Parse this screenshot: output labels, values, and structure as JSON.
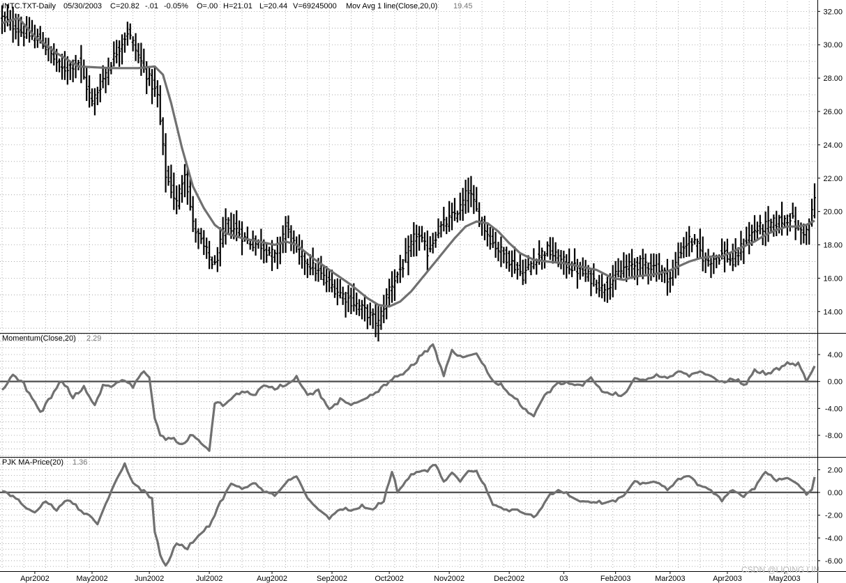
{
  "watermark": "CSDN @LIQING LIN",
  "chart_data": [
    {
      "type": "bar",
      "panel": "price",
      "header": {
        "symbol": "INTC.TXT-Daily",
        "date": "05/30/2003",
        "close": "C=20.82",
        "change": "-.01",
        "change_pct": "-0.05%",
        "open": "O=.00",
        "high": "H=21.01",
        "low": "L=20.44",
        "volume": "V=69245000",
        "indicator": "Mov Avg 1 line(Close,20,0)",
        "indicator_value": "19.45"
      },
      "ylim": [
        12.8,
        32.6
      ],
      "y_ticks": [
        "32.00",
        "30.00",
        "28.00",
        "26.00",
        "24.00",
        "22.00",
        "20.00",
        "18.00",
        "16.00",
        "14.00"
      ],
      "x_ticks": [
        "Apr2002",
        "May2002",
        "Jun2002",
        "Jul2002",
        "Aug2002",
        "Sep2002",
        "Oct2002",
        "Nov2002",
        "Dec2002",
        "03",
        "Feb2003",
        "Mar2003",
        "Apr2003",
        "May2003"
      ],
      "close_anchors": [
        [
          0,
          31.6
        ],
        [
          8,
          30.7
        ],
        [
          14,
          30.3
        ],
        [
          22,
          28.5
        ],
        [
          28,
          29.0
        ],
        [
          33,
          26.5
        ],
        [
          39,
          28.7
        ],
        [
          46,
          30.8
        ],
        [
          52,
          28.6
        ],
        [
          57,
          26.9
        ],
        [
          60,
          22.2
        ],
        [
          64,
          20.5
        ],
        [
          67,
          22.5
        ],
        [
          70,
          19.2
        ],
        [
          74,
          17.8
        ],
        [
          78,
          16.7
        ],
        [
          82,
          19.3
        ],
        [
          86,
          18.9
        ],
        [
          90,
          18.2
        ],
        [
          95,
          18.0
        ],
        [
          100,
          17.3
        ],
        [
          104,
          19.1
        ],
        [
          108,
          17.7
        ],
        [
          113,
          16.8
        ],
        [
          118,
          16.0
        ],
        [
          124,
          15.1
        ],
        [
          131,
          14.3
        ],
        [
          138,
          13.3
        ],
        [
          142,
          15.4
        ],
        [
          147,
          16.8
        ],
        [
          152,
          18.7
        ],
        [
          156,
          17.6
        ],
        [
          160,
          18.9
        ],
        [
          164,
          19.5
        ],
        [
          168,
          20.2
        ],
        [
          171,
          21.3
        ],
        [
          175,
          19.6
        ],
        [
          180,
          18.1
        ],
        [
          186,
          17.1
        ],
        [
          191,
          16.2
        ],
        [
          196,
          17.3
        ],
        [
          200,
          17.7
        ],
        [
          204,
          17.1
        ],
        [
          210,
          16.6
        ],
        [
          216,
          16.0
        ],
        [
          220,
          15.4
        ],
        [
          224,
          15.9
        ],
        [
          228,
          16.6
        ],
        [
          232,
          16.8
        ],
        [
          236,
          16.9
        ],
        [
          240,
          16.6
        ],
        [
          245,
          16.0
        ],
        [
          249,
          17.7
        ],
        [
          252,
          18.3
        ],
        [
          255,
          17.9
        ],
        [
          258,
          17.0
        ],
        [
          262,
          17.3
        ],
        [
          265,
          17.5
        ],
        [
          268,
          16.9
        ],
        [
          272,
          18.1
        ],
        [
          276,
          18.9
        ],
        [
          280,
          19.1
        ],
        [
          285,
          19.4
        ],
        [
          289,
          19.7
        ],
        [
          292,
          18.9
        ],
        [
          295,
          18.8
        ],
        [
          297,
          19.9
        ],
        [
          298,
          20.82
        ]
      ],
      "ma_anchors": [
        [
          0,
          31.3
        ],
        [
          6,
          31.6
        ],
        [
          12,
          30.5
        ],
        [
          20,
          29.5
        ],
        [
          28,
          28.7
        ],
        [
          40,
          28.6
        ],
        [
          50,
          28.6
        ],
        [
          56,
          28.7
        ],
        [
          59,
          28.2
        ],
        [
          62,
          26.5
        ],
        [
          66,
          23.8
        ],
        [
          70,
          21.5
        ],
        [
          74,
          20.2
        ],
        [
          78,
          19.2
        ],
        [
          82,
          18.7
        ],
        [
          88,
          18.4
        ],
        [
          94,
          18.2
        ],
        [
          100,
          18.0
        ],
        [
          104,
          18.2
        ],
        [
          108,
          18.0
        ],
        [
          114,
          17.2
        ],
        [
          120,
          16.5
        ],
        [
          128,
          15.6
        ],
        [
          134,
          14.8
        ],
        [
          138,
          14.4
        ],
        [
          142,
          14.3
        ],
        [
          146,
          14.6
        ],
        [
          150,
          15.2
        ],
        [
          154,
          16.0
        ],
        [
          160,
          17.2
        ],
        [
          166,
          18.4
        ],
        [
          170,
          19.1
        ],
        [
          174,
          19.4
        ],
        [
          178,
          19.3
        ],
        [
          182,
          18.8
        ],
        [
          186,
          18.1
        ],
        [
          190,
          17.5
        ],
        [
          195,
          17.1
        ],
        [
          200,
          17.0
        ],
        [
          206,
          16.9
        ],
        [
          212,
          16.7
        ],
        [
          218,
          16.5
        ],
        [
          224,
          16.0
        ],
        [
          228,
          15.9
        ],
        [
          232,
          16.1
        ],
        [
          238,
          16.2
        ],
        [
          244,
          16.4
        ],
        [
          248,
          16.7
        ],
        [
          252,
          17.0
        ],
        [
          256,
          17.2
        ],
        [
          260,
          17.3
        ],
        [
          264,
          17.3
        ],
        [
          268,
          17.6
        ],
        [
          272,
          17.9
        ],
        [
          276,
          18.2
        ],
        [
          280,
          18.6
        ],
        [
          284,
          18.9
        ],
        [
          288,
          19.1
        ],
        [
          292,
          19.1
        ],
        [
          295,
          19.2
        ],
        [
          298,
          19.45
        ]
      ]
    },
    {
      "type": "line",
      "panel": "momentum",
      "title": "Momentum(Close,20)",
      "value_label": "2.29",
      "ylim": [
        -11.0,
        7.0
      ],
      "y_ticks": [
        "4.00",
        "0.00",
        "-4.00",
        "-8.00"
      ],
      "zero_line": 0,
      "anchors": [
        [
          0,
          -1.5
        ],
        [
          4,
          1.0
        ],
        [
          8,
          -0.2
        ],
        [
          11,
          -2.5
        ],
        [
          14,
          -4.5
        ],
        [
          18,
          -2.0
        ],
        [
          22,
          0.0
        ],
        [
          26,
          -2.5
        ],
        [
          30,
          -1.0
        ],
        [
          34,
          -3.5
        ],
        [
          37,
          -0.5
        ],
        [
          40,
          -0.8
        ],
        [
          44,
          0.2
        ],
        [
          48,
          -0.5
        ],
        [
          52,
          1.5
        ],
        [
          54,
          0.5
        ],
        [
          56,
          -5.5
        ],
        [
          58,
          -8.0
        ],
        [
          62,
          -8.5
        ],
        [
          66,
          -9.5
        ],
        [
          70,
          -8.0
        ],
        [
          73,
          -9.2
        ],
        [
          76,
          -10.3
        ],
        [
          78,
          -3.0
        ],
        [
          82,
          -3.3
        ],
        [
          86,
          -1.8
        ],
        [
          88,
          -1.5
        ],
        [
          92,
          -2.0
        ],
        [
          96,
          -0.5
        ],
        [
          100,
          -1.2
        ],
        [
          104,
          -0.6
        ],
        [
          108,
          0.5
        ],
        [
          112,
          -2.0
        ],
        [
          116,
          -1.2
        ],
        [
          120,
          -4.3
        ],
        [
          124,
          -2.5
        ],
        [
          128,
          -3.5
        ],
        [
          132,
          -2.8
        ],
        [
          136,
          -2.0
        ],
        [
          140,
          -0.5
        ],
        [
          144,
          0.5
        ],
        [
          148,
          1.5
        ],
        [
          152,
          2.8
        ],
        [
          155,
          4.5
        ],
        [
          158,
          5.5
        ],
        [
          160,
          3.0
        ],
        [
          162,
          1.2
        ],
        [
          165,
          4.5
        ],
        [
          168,
          3.5
        ],
        [
          171,
          3.8
        ],
        [
          174,
          4.2
        ],
        [
          177,
          2.0
        ],
        [
          180,
          0.0
        ],
        [
          184,
          -1.0
        ],
        [
          188,
          -2.5
        ],
        [
          192,
          -4.5
        ],
        [
          195,
          -5.0
        ],
        [
          199,
          -2.0
        ],
        [
          203,
          -0.5
        ],
        [
          207,
          -0.3
        ],
        [
          212,
          -0.5
        ],
        [
          216,
          0.5
        ],
        [
          220,
          -1.5
        ],
        [
          224,
          -2.0
        ],
        [
          228,
          -2.2
        ],
        [
          232,
          0.5
        ],
        [
          236,
          0.2
        ],
        [
          240,
          0.8
        ],
        [
          244,
          0.5
        ],
        [
          248,
          1.5
        ],
        [
          252,
          1.0
        ],
        [
          256,
          1.5
        ],
        [
          260,
          0.8
        ],
        [
          264,
          -0.3
        ],
        [
          268,
          0.3
        ],
        [
          272,
          -0.5
        ],
        [
          276,
          1.5
        ],
        [
          280,
          1.0
        ],
        [
          284,
          2.0
        ],
        [
          288,
          2.5
        ],
        [
          292,
          2.8
        ],
        [
          295,
          0.0
        ],
        [
          297,
          1.5
        ],
        [
          298,
          2.29
        ]
      ]
    },
    {
      "type": "line",
      "panel": "pjk",
      "title": "PJK MA-Price(20)",
      "value_label": "1.36",
      "ylim": [
        -6.8,
        3.0
      ],
      "y_ticks": [
        "2.00",
        "0.00",
        "-2.00",
        "-4.00",
        "-6.00"
      ],
      "zero_line": 0,
      "anchors": [
        [
          0,
          0.2
        ],
        [
          4,
          -0.3
        ],
        [
          8,
          -1.2
        ],
        [
          12,
          -1.8
        ],
        [
          16,
          -0.8
        ],
        [
          20,
          -1.6
        ],
        [
          24,
          -0.5
        ],
        [
          28,
          -1.5
        ],
        [
          32,
          -2.0
        ],
        [
          35,
          -2.8
        ],
        [
          38,
          -1.0
        ],
        [
          42,
          1.2
        ],
        [
          45,
          2.4
        ],
        [
          48,
          0.8
        ],
        [
          52,
          0.2
        ],
        [
          55,
          -0.5
        ],
        [
          56,
          -3.5
        ],
        [
          58,
          -5.5
        ],
        [
          60,
          -6.6
        ],
        [
          64,
          -4.5
        ],
        [
          68,
          -5.0
        ],
        [
          72,
          -3.8
        ],
        [
          76,
          -3.0
        ],
        [
          80,
          -0.8
        ],
        [
          84,
          0.8
        ],
        [
          88,
          0.3
        ],
        [
          92,
          0.8
        ],
        [
          96,
          0.2
        ],
        [
          100,
          -0.3
        ],
        [
          104,
          0.8
        ],
        [
          108,
          1.5
        ],
        [
          112,
          -0.5
        ],
        [
          116,
          -1.5
        ],
        [
          120,
          -2.2
        ],
        [
          124,
          -1.5
        ],
        [
          128,
          -1.6
        ],
        [
          132,
          -1.3
        ],
        [
          136,
          -1.5
        ],
        [
          140,
          -0.8
        ],
        [
          143,
          1.8
        ],
        [
          145,
          0.0
        ],
        [
          148,
          1.0
        ],
        [
          152,
          1.8
        ],
        [
          156,
          2.0
        ],
        [
          159,
          2.6
        ],
        [
          162,
          0.8
        ],
        [
          165,
          1.8
        ],
        [
          168,
          1.0
        ],
        [
          171,
          1.9
        ],
        [
          174,
          1.8
        ],
        [
          177,
          0.5
        ],
        [
          180,
          -1.0
        ],
        [
          184,
          -1.5
        ],
        [
          188,
          -1.5
        ],
        [
          192,
          -1.9
        ],
        [
          196,
          -2.0
        ],
        [
          200,
          -0.5
        ],
        [
          204,
          0.2
        ],
        [
          208,
          -0.3
        ],
        [
          212,
          -0.8
        ],
        [
          216,
          -0.8
        ],
        [
          220,
          -1.0
        ],
        [
          224,
          -0.7
        ],
        [
          228,
          -0.3
        ],
        [
          232,
          1.0
        ],
        [
          236,
          0.8
        ],
        [
          240,
          1.0
        ],
        [
          244,
          0.2
        ],
        [
          248,
          1.2
        ],
        [
          252,
          1.5
        ],
        [
          256,
          0.6
        ],
        [
          260,
          0.2
        ],
        [
          264,
          -0.6
        ],
        [
          268,
          0.2
        ],
        [
          272,
          -0.4
        ],
        [
          276,
          0.5
        ],
        [
          280,
          1.8
        ],
        [
          284,
          1.0
        ],
        [
          288,
          1.3
        ],
        [
          292,
          0.7
        ],
        [
          295,
          -0.2
        ],
        [
          297,
          0.3
        ],
        [
          298,
          1.36
        ]
      ]
    }
  ]
}
